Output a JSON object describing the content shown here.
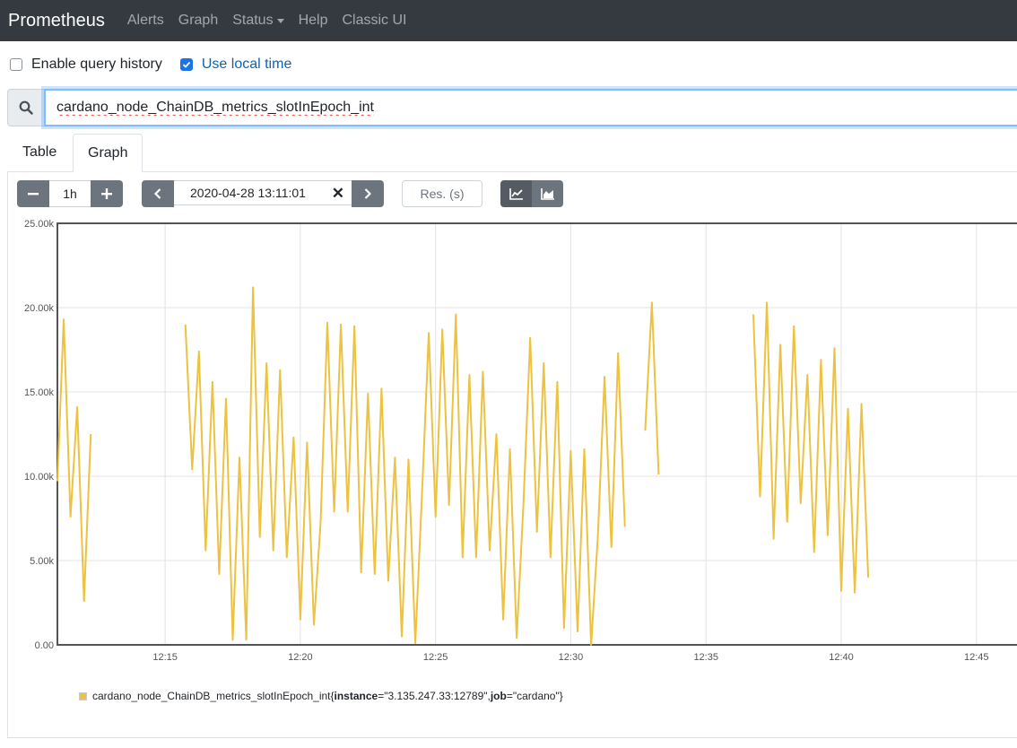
{
  "navbar": {
    "brand": "Prometheus",
    "items": [
      "Alerts",
      "Graph",
      "Status",
      "Help",
      "Classic UI"
    ]
  },
  "options": {
    "query_history_label": "Enable query history",
    "query_history_checked": false,
    "local_time_label": "Use local time",
    "local_time_checked": true
  },
  "query": {
    "expression": "cardano_node_ChainDB_metrics_slotInEpoch_int"
  },
  "tabs": [
    "Table",
    "Graph"
  ],
  "active_tab": "Graph",
  "controls": {
    "range": "1h",
    "end_time": "2020-04-28 13:11:01",
    "resolution_placeholder": "Res. (s)",
    "stacked": false
  },
  "colors": {
    "navbar_bg": "#343a40",
    "series": "#edc240",
    "accent": "#1a73e8"
  },
  "legend": {
    "metric": "cardano_node_ChainDB_metrics_slotInEpoch_int",
    "label_open": "{",
    "label1_key": "instance",
    "label1_value": "=\"3.135.247.33:12789\", ",
    "label2_key": "job",
    "label2_value": "=\"cardano\"}"
  },
  "chart_data": {
    "type": "line",
    "x_ticks": [
      "12:15",
      "12:20",
      "12:25",
      "12:30",
      "12:35",
      "12:40",
      "12:45"
    ],
    "y_ticks": [
      "0.00",
      "5.00k",
      "10.00k",
      "15.00k",
      "20.00k",
      "25.00k"
    ],
    "ylim": [
      0,
      25000
    ],
    "xlim": [
      "12:11:01",
      "12:46:30"
    ],
    "grid": true,
    "series": [
      {
        "name": "cardano_node_ChainDB_metrics_slotInEpoch_int{instance=\"3.135.247.33:12789\", job=\"cardano\"}",
        "segments": [
          [
            [
              "12:11:01",
              9700
            ],
            [
              "12:11:15",
              19300
            ],
            [
              "12:11:30",
              7600
            ],
            [
              "12:11:45",
              14100
            ],
            [
              "12:12:00",
              2600
            ],
            [
              "12:12:15",
              12500
            ]
          ],
          [
            [
              "12:15:45",
              19000
            ],
            [
              "12:16:00",
              10400
            ],
            [
              "12:16:15",
              17400
            ],
            [
              "12:16:30",
              5600
            ],
            [
              "12:16:45",
              15600
            ],
            [
              "12:17:00",
              4200
            ],
            [
              "12:17:15",
              14600
            ],
            [
              "12:17:30",
              300
            ],
            [
              "12:17:45",
              11100
            ],
            [
              "12:18:00",
              300
            ],
            [
              "12:18:15",
              21200
            ],
            [
              "12:18:30",
              6400
            ],
            [
              "12:18:45",
              16700
            ],
            [
              "12:19:00",
              5600
            ],
            [
              "12:19:15",
              16300
            ],
            [
              "12:19:30",
              5200
            ],
            [
              "12:19:45",
              12300
            ],
            [
              "12:20:00",
              1500
            ],
            [
              "12:20:15",
              12000
            ],
            [
              "12:20:30",
              1200
            ],
            [
              "12:20:45",
              7300
            ],
            [
              "12:21:00",
              19100
            ],
            [
              "12:21:15",
              7900
            ],
            [
              "12:21:30",
              19000
            ],
            [
              "12:21:45",
              7900
            ],
            [
              "12:22:00",
              18900
            ],
            [
              "12:22:15",
              4300
            ],
            [
              "12:22:30",
              14900
            ],
            [
              "12:22:45",
              4200
            ],
            [
              "12:23:00",
              15200
            ],
            [
              "12:23:15",
              3800
            ],
            [
              "12:23:30",
              11100
            ],
            [
              "12:23:45",
              500
            ],
            [
              "12:24:00",
              11000
            ],
            [
              "12:24:15",
              100
            ],
            [
              "12:24:30",
              9000
            ],
            [
              "12:24:45",
              18500
            ],
            [
              "12:25:00",
              7600
            ],
            [
              "12:25:15",
              18700
            ],
            [
              "12:25:30",
              8300
            ],
            [
              "12:25:45",
              19600
            ],
            [
              "12:26:00",
              5200
            ],
            [
              "12:26:15",
              16000
            ],
            [
              "12:26:30",
              5200
            ],
            [
              "12:26:45",
              16200
            ],
            [
              "12:27:00",
              5600
            ],
            [
              "12:27:15",
              12500
            ],
            [
              "12:27:30",
              1500
            ],
            [
              "12:27:45",
              11600
            ],
            [
              "12:28:00",
              400
            ],
            [
              "12:28:15",
              8400
            ],
            [
              "12:28:30",
              18200
            ],
            [
              "12:28:45",
              6700
            ],
            [
              "12:29:00",
              16700
            ],
            [
              "12:29:15",
              5200
            ],
            [
              "12:29:30",
              15600
            ],
            [
              "12:29:45",
              1000
            ],
            [
              "12:30:00",
              11500
            ],
            [
              "12:30:15",
              800
            ],
            [
              "12:30:30",
              11600
            ],
            [
              "12:30:45",
              0
            ],
            [
              "12:31:00",
              6400
            ],
            [
              "12:31:15",
              15900
            ],
            [
              "12:31:30",
              5800
            ],
            [
              "12:31:45",
              17300
            ],
            [
              "12:32:00",
              7000
            ]
          ],
          [
            [
              "12:32:45",
              12700
            ],
            [
              "12:33:00",
              20300
            ],
            [
              "12:33:15",
              10100
            ]
          ],
          [
            [
              "12:36:45",
              19600
            ],
            [
              "12:37:00",
              8800
            ],
            [
              "12:37:15",
              20300
            ],
            [
              "12:37:30",
              6300
            ],
            [
              "12:37:45",
              17800
            ],
            [
              "12:38:00",
              7300
            ],
            [
              "12:38:15",
              18900
            ],
            [
              "12:38:30",
              8400
            ],
            [
              "12:38:45",
              16000
            ],
            [
              "12:39:00",
              5500
            ],
            [
              "12:39:15",
              16900
            ],
            [
              "12:39:30",
              6500
            ],
            [
              "12:39:45",
              17600
            ],
            [
              "12:40:00",
              3200
            ],
            [
              "12:40:15",
              14000
            ],
            [
              "12:40:30",
              3100
            ],
            [
              "12:40:45",
              14300
            ],
            [
              "12:41:00",
              4000
            ]
          ]
        ]
      }
    ]
  }
}
